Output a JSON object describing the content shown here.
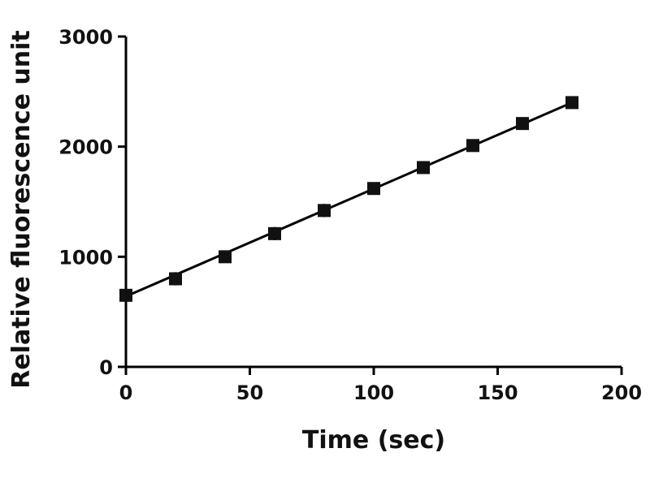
{
  "chart_data": {
    "type": "scatter",
    "xlabel": "Time (sec)",
    "ylabel": "Relative fluorescence unit",
    "xlim": [
      0,
      200
    ],
    "ylim": [
      0,
      3000
    ],
    "x_ticks": [
      0,
      50,
      100,
      150,
      200
    ],
    "y_ticks": [
      0,
      1000,
      2000,
      3000
    ],
    "x_tick_labels": [
      "0",
      "50",
      "100",
      "150",
      "200"
    ],
    "y_tick_labels": [
      "0",
      "1000",
      "2000",
      "3000"
    ],
    "grid": false,
    "marker": "square",
    "series": [
      {
        "x": [
          0,
          20,
          40,
          60,
          80,
          100,
          120,
          140,
          160,
          180
        ],
        "y": [
          650,
          800,
          1000,
          1210,
          1420,
          1620,
          1810,
          2010,
          2210,
          2400
        ],
        "error": [
          50,
          60,
          50,
          60,
          60,
          40,
          50,
          20,
          20,
          20
        ]
      }
    ],
    "fit_line": {
      "x": [
        0,
        180
      ],
      "y": [
        640,
        2400
      ]
    },
    "colors": {
      "marker": "#111111",
      "axis": "#000000"
    }
  }
}
